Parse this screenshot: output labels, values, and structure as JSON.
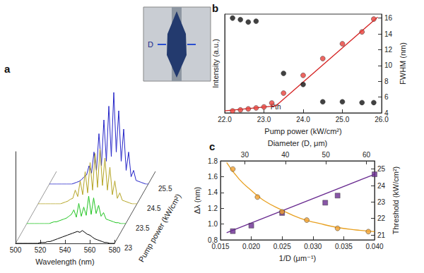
{
  "chart_data": [
    {
      "type": "line",
      "title": "a",
      "x_label": "Wavelength (nm)",
      "z_label": "Pump power (kW/cm²)",
      "annotations": [
        "D"
      ],
      "xlim": [
        500,
        580
      ],
      "xticks": [
        500,
        520,
        540,
        560,
        580
      ],
      "ylim": [
        0,
        1
      ],
      "yticks": [],
      "x": [
        500,
        502,
        504,
        506,
        508,
        510,
        512,
        514,
        516,
        518,
        520,
        522,
        524,
        526,
        528,
        530,
        532,
        534,
        536,
        538,
        540,
        542,
        544,
        546,
        548,
        550,
        552,
        554,
        556,
        558,
        560,
        562,
        564,
        566,
        568,
        570,
        572,
        574,
        576,
        578,
        580
      ],
      "series": [
        {
          "name": "23",
          "color": "#000000",
          "values": [
            0,
            0,
            0,
            0,
            0,
            0,
            0,
            0,
            0,
            0,
            0.01,
            0.01,
            0.01,
            0.02,
            0.02,
            0.03,
            0.04,
            0.05,
            0.06,
            0.07,
            0.08,
            0.09,
            0.1,
            0.11,
            0.12,
            0.13,
            0.12,
            0.14,
            0.12,
            0.1,
            0.09,
            0.07,
            0.05,
            0.04,
            0.03,
            0.02,
            0.01,
            0.01,
            0,
            0,
            0
          ]
        },
        {
          "name": "23.5",
          "color": "#22c422",
          "values": [
            0,
            0,
            0,
            0,
            0,
            0,
            0,
            0,
            0,
            0,
            0.01,
            0.02,
            0.02,
            0.03,
            0.04,
            0.05,
            0.06,
            0.08,
            0.1,
            0.15,
            0.07,
            0.22,
            0.08,
            0.18,
            0.09,
            0.3,
            0.1,
            0.28,
            0.11,
            0.2,
            0.08,
            0.12,
            0.05,
            0.04,
            0.03,
            0.02,
            0.01,
            0.01,
            0,
            0,
            0
          ]
        },
        {
          "name": "24.5",
          "color": "#b5a526",
          "values": [
            0,
            0,
            0,
            0,
            0,
            0,
            0,
            0,
            0,
            0,
            0.01,
            0.02,
            0.03,
            0.05,
            0.06,
            0.15,
            0.08,
            0.25,
            0.1,
            0.35,
            0.12,
            0.45,
            0.15,
            0.55,
            0.18,
            0.6,
            0.2,
            0.5,
            0.15,
            0.4,
            0.1,
            0.25,
            0.06,
            0.12,
            0.04,
            0.03,
            0.02,
            0.01,
            0,
            0,
            0
          ]
        },
        {
          "name": "25.5",
          "color": "#2626c8",
          "values": [
            0,
            0,
            0,
            0,
            0,
            0,
            0,
            0,
            0,
            0,
            0.01,
            0.02,
            0.03,
            0.05,
            0.08,
            0.1,
            0.2,
            0.12,
            0.35,
            0.15,
            0.55,
            0.2,
            0.7,
            0.25,
            0.85,
            0.3,
            1.0,
            0.35,
            0.8,
            0.25,
            0.6,
            0.15,
            0.35,
            0.08,
            0.15,
            0.04,
            0.03,
            0.02,
            0.01,
            0,
            0
          ]
        }
      ]
    },
    {
      "type": "scatter",
      "title": "b",
      "x_label": "Pump power (kW/cm²)",
      "y_label": "Intensity (a.u.)",
      "y2_label": "FWHM (nm)",
      "annotations": [
        {
          "text": "Pth",
          "x": 23.3
        }
      ],
      "xlim": [
        22,
        26
      ],
      "xticks": [
        {
          "value": 22,
          "label": "22.0"
        },
        {
          "value": 23,
          "label": "23.0"
        },
        {
          "value": 24,
          "label": "24.0"
        },
        {
          "value": 25,
          "label": "25.0"
        },
        {
          "value": 26,
          "label": "26.0"
        }
      ],
      "ylim": [
        0,
        1
      ],
      "yticks": [],
      "y2lim": [
        4,
        16.5
      ],
      "y2ticks": [
        4,
        6,
        8,
        10,
        12,
        14,
        16
      ],
      "series": [
        {
          "type": "line",
          "color": "#d42020",
          "line_style": "solid",
          "x": [
            22.0,
            23.3
          ],
          "values": [
            0.02,
            0.07
          ]
        },
        {
          "type": "line",
          "color": "#d42020",
          "line_style": "solid",
          "x": [
            23.3,
            25.9
          ],
          "values": [
            0.07,
            0.97
          ]
        },
        {
          "type": "scatter",
          "color": "#e8403a",
          "marker": "circle",
          "x": [
            22.2,
            22.4,
            22.6,
            22.8,
            23.0,
            23.2,
            23.5,
            24.0,
            24.5,
            25.0,
            25.5,
            25.8
          ],
          "values": [
            0.02,
            0.03,
            0.04,
            0.05,
            0.06,
            0.1,
            0.2,
            0.38,
            0.55,
            0.7,
            0.82,
            0.95
          ]
        },
        {
          "type": "scatter",
          "color": "#111111",
          "marker": "circle",
          "axis": "y2",
          "x": [
            22.2,
            22.4,
            22.6,
            22.8,
            23.5,
            24.0,
            24.5,
            25.0,
            25.5,
            25.8
          ],
          "values": [
            16,
            15.8,
            15.5,
            15.6,
            9,
            7.6,
            5.4,
            5.4,
            5.3,
            5.3
          ]
        }
      ]
    },
    {
      "type": "scatter",
      "title": "c",
      "x_label": "1/D (μm⁻¹)",
      "x2_label": "Diameter (D, μm)",
      "y_label": "Δλ (nm)",
      "y2_label": "Threshold (kW/cm²)",
      "xlim": [
        0.015,
        0.04
      ],
      "xticks": [
        0.015,
        {
          "value": 0.02,
          "label": "0.020"
        },
        0.025,
        {
          "value": 0.03,
          "label": "0.030"
        },
        0.035,
        {
          "value": 0.04,
          "label": "0.040"
        }
      ],
      "x2lim": [
        24,
        62
      ],
      "x2ticks": [
        30,
        40,
        50,
        60
      ],
      "ylim": [
        0.8,
        1.8
      ],
      "yticks": [
        0.8,
        {
          "value": 1,
          "label": "1.0"
        },
        1.2,
        1.4,
        1.6,
        1.8
      ],
      "y2lim": [
        20.7,
        25.5
      ],
      "y2ticks": [
        21,
        22,
        23,
        24,
        25
      ],
      "series": [
        {
          "type": "line",
          "color": "#6a2c91",
          "line_style": "solid",
          "x": [
            0.016,
            0.04
          ],
          "values": [
            0.89,
            1.63
          ]
        },
        {
          "type": "scatter",
          "color": "#6a2c91",
          "marker": "square",
          "x": [
            0.017,
            0.02,
            0.025,
            0.032,
            0.034,
            0.04
          ],
          "values": [
            0.91,
            0.98,
            1.14,
            1.27,
            1.36,
            1.63
          ]
        },
        {
          "type": "line",
          "color": "#e8a020",
          "line_style": "solid",
          "axis": "y2",
          "x": [
            0.016,
            0.018,
            0.02,
            0.022,
            0.025,
            0.028,
            0.031,
            0.034,
            0.037,
            0.04
          ],
          "values": [
            25.4,
            24.4,
            23.7,
            23.1,
            22.5,
            22.0,
            21.7,
            21.45,
            21.3,
            21.2
          ]
        },
        {
          "type": "scatter",
          "color": "#f0a030",
          "marker": "circle",
          "axis": "y2",
          "x": [
            0.017,
            0.021,
            0.025,
            0.029,
            0.034,
            0.039
          ],
          "values": [
            25.0,
            23.3,
            22.4,
            21.9,
            21.4,
            21.2
          ]
        }
      ]
    }
  ]
}
